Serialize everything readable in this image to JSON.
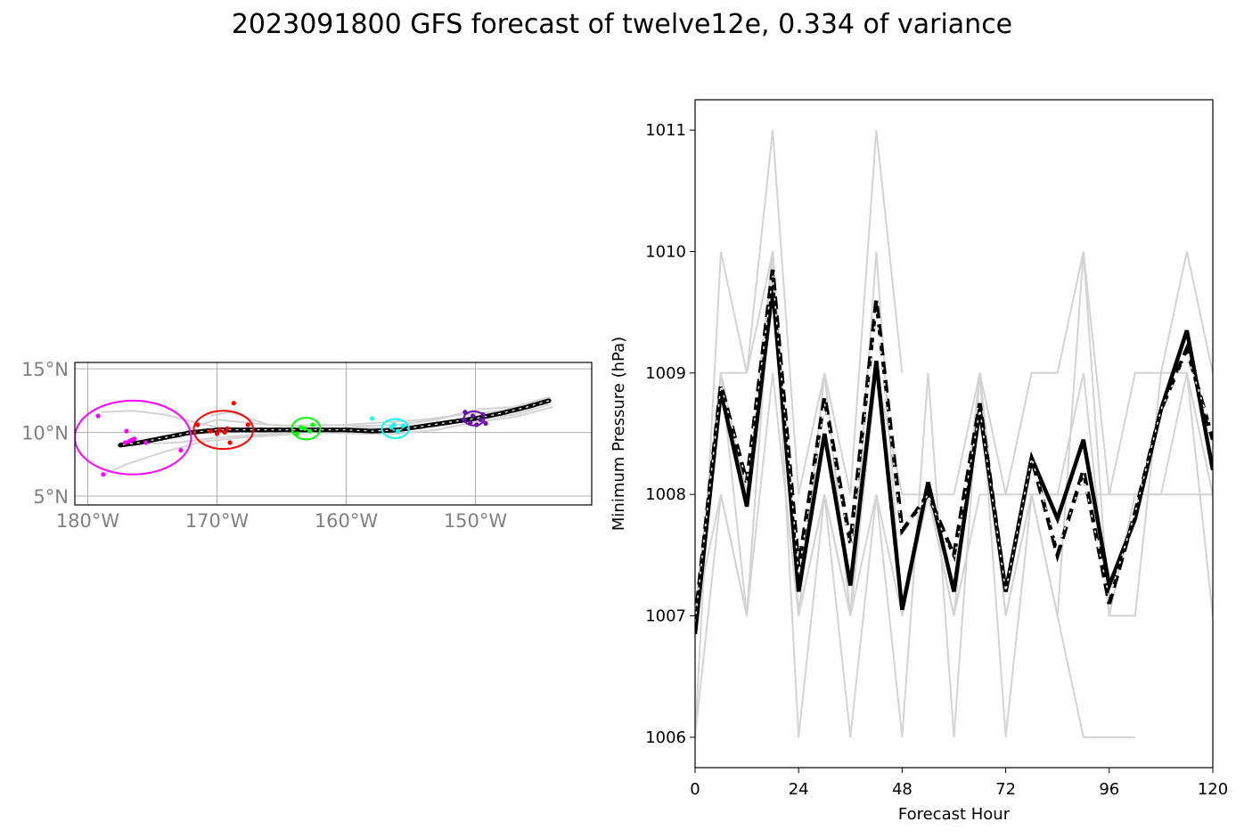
{
  "title": "2023091800 GFS forecast of twelve12e, 0.334 of variance",
  "chart_data": [
    {
      "type": "map",
      "lat_ticks": [
        "15°N",
        "10°N",
        "5°N"
      ],
      "lon_ticks": [
        "180°W",
        "170°W",
        "160°W",
        "150°W"
      ],
      "lon_range": [
        -181,
        -141
      ],
      "lat_range": [
        4.3,
        15.5
      ],
      "grid": true,
      "mean_track": [
        [
          -144.3,
          12.5
        ],
        [
          -146,
          12
        ],
        [
          -148,
          11.5
        ],
        [
          -150,
          11.1
        ],
        [
          -152,
          10.8
        ],
        [
          -154,
          10.5
        ],
        [
          -156,
          10.2
        ],
        [
          -158,
          10.1
        ],
        [
          -160,
          10.2
        ],
        [
          -162,
          10.2
        ],
        [
          -164,
          10.2
        ],
        [
          -166,
          10.2
        ],
        [
          -168,
          10.2
        ],
        [
          -170,
          10.2
        ],
        [
          -172,
          10
        ],
        [
          -174,
          9.6
        ],
        [
          -176,
          9.2
        ],
        [
          -177.5,
          9.0
        ]
      ],
      "ensemble_tracks": [
        [
          [
            -144.2,
            12.8
          ],
          [
            -147,
            12
          ],
          [
            -150,
            11.8
          ],
          [
            -153,
            11
          ],
          [
            -156,
            10.6
          ],
          [
            -159,
            10.5
          ],
          [
            -162,
            10.6
          ],
          [
            -165,
            10.5
          ],
          [
            -168,
            10.8
          ],
          [
            -170,
            11
          ],
          [
            -172,
            10.4
          ]
        ],
        [
          [
            -144.2,
            12.2
          ],
          [
            -147,
            11.4
          ],
          [
            -150,
            11
          ],
          [
            -153,
            10.5
          ],
          [
            -156,
            10.3
          ],
          [
            -159,
            10.4
          ],
          [
            -162,
            10.1
          ],
          [
            -165,
            9.8
          ],
          [
            -168,
            9.6
          ],
          [
            -171,
            9.3
          ],
          [
            -174,
            8.5
          ],
          [
            -177,
            7.5
          ],
          [
            -178.8,
            6.7
          ]
        ],
        [
          [
            -144,
            12
          ],
          [
            -147,
            11.2
          ],
          [
            -150,
            10.8
          ],
          [
            -153,
            10.2
          ],
          [
            -156,
            9.9
          ],
          [
            -159,
            9.9
          ],
          [
            -162,
            10
          ],
          [
            -165,
            10
          ],
          [
            -168,
            10.2
          ],
          [
            -171,
            10.6
          ],
          [
            -174,
            11.4
          ],
          [
            -176.5,
            11.7
          ],
          [
            -179,
            11.6
          ]
        ],
        [
          [
            -145,
            12.4
          ],
          [
            -148,
            11.7
          ],
          [
            -151,
            11.4
          ],
          [
            -154,
            11
          ],
          [
            -157,
            10.8
          ],
          [
            -160,
            10.6
          ],
          [
            -163,
            10.5
          ],
          [
            -166,
            10.6
          ],
          [
            -169,
            11.6
          ],
          [
            -170.5,
            11.3
          ]
        ],
        [
          [
            -149,
            11.4
          ],
          [
            -152,
            10.9
          ],
          [
            -155,
            10.4
          ],
          [
            -158,
            10.2
          ],
          [
            -161,
            10.1
          ],
          [
            -164,
            10
          ],
          [
            -167,
            9.8
          ],
          [
            -170,
            9.6
          ],
          [
            -173,
            9.2
          ],
          [
            -176,
            9.1
          ]
        ]
      ],
      "forecast_clusters": [
        {
          "color": "#ff00ff",
          "center": [
            -176.5,
            9.6
          ],
          "rx": 4.5,
          "ry": 2.9,
          "points": [
            [
              -179.2,
              11.3
            ],
            [
              -177,
              10.1
            ],
            [
              -176.8,
              9.3
            ],
            [
              -177.1,
              9.2
            ],
            [
              -176.6,
              9.4
            ],
            [
              -176.4,
              9.5
            ],
            [
              -175.5,
              9.2
            ],
            [
              -172.8,
              8.6
            ],
            [
              -178.8,
              6.7
            ]
          ]
        },
        {
          "color": "#ff0000",
          "center": [
            -169.5,
            10.2
          ],
          "rx": 2.3,
          "ry": 1.5,
          "points": [
            [
              -168.7,
              12.3
            ],
            [
              -169.8,
              10.2
            ],
            [
              -169.4,
              10
            ],
            [
              -170,
              9.9
            ],
            [
              -169.2,
              10.3
            ],
            [
              -170.5,
              10.1
            ],
            [
              -169,
              9.2
            ],
            [
              -171.5,
              10.6
            ],
            [
              -167.6,
              10.6
            ]
          ]
        },
        {
          "color": "#00ff00",
          "center": [
            -163.1,
            10.3
          ],
          "rx": 1.1,
          "ry": 0.85,
          "points": [
            [
              -163.2,
              10.3
            ],
            [
              -162.8,
              10.1
            ],
            [
              -163.5,
              10.4
            ],
            [
              -162.6,
              10.6
            ],
            [
              -163.8,
              9.9
            ]
          ]
        },
        {
          "color": "#00ffff",
          "center": [
            -156.2,
            10.3
          ],
          "rx": 1.05,
          "ry": 0.75,
          "points": [
            [
              -158,
              11.1
            ],
            [
              -156.5,
              10.4
            ],
            [
              -156,
              10.1
            ],
            [
              -155.6,
              10.5
            ],
            [
              -156.3,
              10.6
            ]
          ]
        },
        {
          "color": "#6a0dad",
          "center": [
            -150.1,
            11.1
          ],
          "rx": 0.8,
          "ry": 0.55,
          "points": [
            [
              -150.8,
              11.6
            ],
            [
              -150.2,
              11.3
            ],
            [
              -149.6,
              11
            ],
            [
              -150.4,
              10.8
            ],
            [
              -149.4,
              11.4
            ],
            [
              -150.9,
              11
            ],
            [
              -149.9,
              10.6
            ],
            [
              -149.2,
              10.7
            ]
          ]
        }
      ]
    },
    {
      "type": "line",
      "xlabel": "Forecast Hour",
      "ylabel": "Minimum Pressure (hPa)",
      "xlim": [
        0,
        120
      ],
      "ylim": [
        1005.75,
        1011.25
      ],
      "xticks": [
        0,
        24,
        48,
        72,
        96,
        120
      ],
      "yticks": [
        1006,
        1007,
        1008,
        1009,
        1010,
        1011
      ],
      "x": [
        0,
        6,
        12,
        18,
        24,
        30,
        36,
        42,
        48,
        54,
        60,
        66,
        72,
        78,
        84,
        90,
        96,
        102,
        108,
        114,
        120
      ],
      "ensemble_members": [
        {
          "x": [
            0,
            6,
            12,
            18,
            24,
            30,
            36,
            42,
            48
          ],
          "values": [
            1006,
            1010,
            1009,
            1011,
            1008,
            1009,
            1008,
            1011,
            1009
          ]
        },
        {
          "x": [
            0,
            6,
            12,
            18,
            24,
            30,
            36,
            42,
            48,
            54,
            60,
            66,
            72,
            78,
            84,
            90,
            96,
            102,
            108,
            114,
            120
          ],
          "values": [
            1007,
            1009,
            1009,
            1010,
            1006,
            1008,
            1006,
            1008,
            1006,
            1009,
            1006,
            1009,
            1006,
            1008,
            1007,
            1010,
            1008,
            1009,
            1009,
            1010,
            1009
          ]
        },
        {
          "x": [
            0,
            6,
            12,
            18,
            24,
            30,
            36,
            42,
            48,
            54,
            60,
            66,
            72,
            78,
            84,
            90,
            96,
            102,
            108,
            114,
            120
          ],
          "values": [
            1006,
            1008,
            1007,
            1010,
            1007,
            1009,
            1007,
            1010,
            1007,
            1008,
            1007,
            1009,
            1008,
            1009,
            1009,
            1010,
            1007,
            1007,
            1009,
            1009,
            1008
          ]
        },
        {
          "x": [
            0,
            6,
            12,
            18,
            24,
            30,
            36,
            42,
            48,
            54,
            60,
            66,
            72,
            78,
            84,
            90,
            96,
            102,
            108,
            114,
            120
          ],
          "values": [
            1007,
            1009,
            1008,
            1010,
            1007,
            1008,
            1007,
            1009,
            1008,
            1008,
            1008,
            1009,
            1007,
            1008,
            1008,
            1009,
            1007,
            1008,
            1008,
            1009,
            1007
          ]
        },
        {
          "x": [
            0,
            6,
            12,
            18,
            24,
            30,
            36,
            42,
            48,
            54,
            60,
            66,
            72,
            78,
            84,
            90,
            96,
            102
          ],
          "values": [
            1007,
            1009,
            1007,
            1010,
            1007,
            1009,
            1007,
            1009,
            1007,
            1008,
            1007,
            1009,
            1007,
            1008,
            1007,
            1006,
            1006,
            1006
          ]
        },
        {
          "x": [
            0,
            6,
            12,
            18,
            24,
            30,
            36,
            42,
            48,
            54,
            60,
            66,
            72,
            78,
            84,
            90,
            96,
            102,
            108,
            114,
            120
          ],
          "values": [
            1007,
            1008,
            1007,
            1009,
            1007,
            1008,
            1007,
            1008,
            1007,
            1008,
            1007,
            1008,
            1008,
            1008,
            1008,
            1008,
            1008,
            1008,
            1008,
            1008,
            1008
          ]
        }
      ],
      "series": [
        {
          "style": "solid",
          "values": [
            1006.85,
            1008.85,
            1007.9,
            1009.7,
            1007.2,
            1008.5,
            1007.25,
            1009.1,
            1007.05,
            1008.1,
            1007.2,
            1008.7,
            1007.2,
            1008.3,
            1007.8,
            1008.45,
            1007.25,
            1007.8,
            1008.7,
            1009.35,
            1008.2
          ]
        },
        {
          "style": "dashed",
          "values": [
            1006.95,
            1008.9,
            1008.1,
            1009.85,
            1007.4,
            1008.8,
            1007.6,
            1009.6,
            1007.7,
            1008,
            1007.5,
            1008.75,
            1007.2,
            1008.3,
            1007.5,
            1008.2,
            1007.1,
            1007.85,
            1008.7,
            1009.2,
            1008.45
          ]
        },
        {
          "style": "dotted-white",
          "values": [
            1006.95,
            1008.9,
            1008.1,
            1009.8,
            1007.35,
            1008.75,
            1007.55,
            1009.5,
            1007.65,
            1008,
            1007.45,
            1008.7,
            1007.2,
            1008.3,
            1007.55,
            1008.15,
            1007.15,
            1007.85,
            1008.7,
            1009.15,
            1008.5
          ]
        }
      ]
    }
  ]
}
